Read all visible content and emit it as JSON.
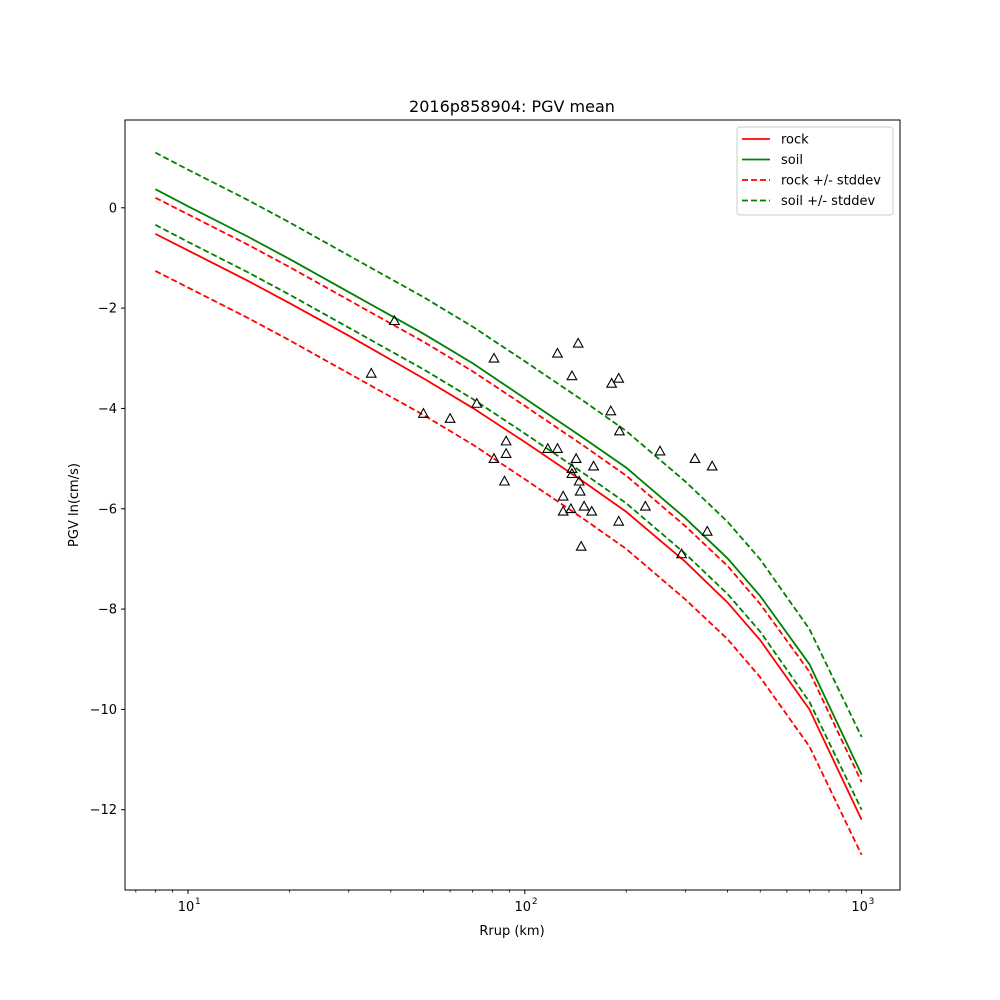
{
  "chart_data": {
    "type": "line",
    "title": "2016p858904: PGV mean",
    "xlabel": "Rrup (km)",
    "ylabel": "PGV ln(cm/s)",
    "xscale": "log",
    "xlim": [
      6.5,
      1300
    ],
    "ylim": [
      -13.6,
      1.75
    ],
    "xticks": [
      {
        "value": 10,
        "label": "10"
      },
      {
        "value": 100,
        "label": "10"
      },
      {
        "value": 1000,
        "label": "10"
      }
    ],
    "xtick_exponents": [
      "1",
      "2",
      "3"
    ],
    "yticks": [
      {
        "value": 0,
        "label": "0"
      },
      {
        "value": -2,
        "label": "−2"
      },
      {
        "value": -4,
        "label": "−4"
      },
      {
        "value": -6,
        "label": "−6"
      },
      {
        "value": -8,
        "label": "−8"
      },
      {
        "value": -10,
        "label": "−10"
      },
      {
        "value": -12,
        "label": "−12"
      }
    ],
    "grid": false,
    "legend_position": "top-right",
    "x": [
      8,
      10,
      15,
      20,
      30,
      50,
      70,
      100,
      150,
      200,
      300,
      400,
      500,
      700,
      1000
    ],
    "series": [
      {
        "name": "rock",
        "color": "#ff0000",
        "dash": "solid",
        "values": [
          -0.52,
          -0.85,
          -1.45,
          -1.9,
          -2.55,
          -3.4,
          -3.99,
          -4.67,
          -5.47,
          -6.06,
          -7.06,
          -7.87,
          -8.62,
          -10.0,
          -12.2
        ]
      },
      {
        "name": "soil",
        "color": "#008000",
        "dash": "solid",
        "values": [
          0.37,
          0.03,
          -0.57,
          -1.02,
          -1.68,
          -2.51,
          -3.1,
          -3.8,
          -4.6,
          -5.18,
          -6.19,
          -6.99,
          -7.74,
          -9.1,
          -11.3
        ]
      },
      {
        "name": "rock +/- stddev",
        "color": "#ff0000",
        "dash": "dashed",
        "values": [
          0.2,
          -0.13,
          -0.73,
          -1.18,
          -1.84,
          -2.67,
          -3.26,
          -3.95,
          -4.75,
          -5.34,
          -6.35,
          -7.14,
          -7.9,
          -9.25,
          -11.45
        ]
      },
      {
        "name": "",
        "color": "#ff0000",
        "dash": "dashed",
        "values": [
          -1.26,
          -1.59,
          -2.19,
          -2.64,
          -3.3,
          -4.13,
          -4.72,
          -5.41,
          -6.21,
          -6.8,
          -7.81,
          -8.6,
          -9.36,
          -10.74,
          -12.9
        ]
      },
      {
        "name": "soil +/- stddev",
        "color": "#008000",
        "dash": "dashed",
        "values": [
          1.1,
          0.76,
          0.16,
          -0.29,
          -0.95,
          -1.78,
          -2.37,
          -3.06,
          -3.86,
          -4.45,
          -5.46,
          -6.26,
          -7.01,
          -8.4,
          -10.55
        ]
      },
      {
        "name": "",
        "color": "#008000",
        "dash": "dashed",
        "values": [
          -0.34,
          -0.68,
          -1.28,
          -1.73,
          -2.39,
          -3.22,
          -3.81,
          -4.5,
          -5.3,
          -5.89,
          -6.9,
          -7.7,
          -8.45,
          -9.85,
          -12.0
        ]
      }
    ],
    "observations": {
      "marker": "triangle",
      "color": "#000000",
      "points": [
        [
          41,
          -2.25
        ],
        [
          35,
          -3.3
        ],
        [
          50,
          -4.1
        ],
        [
          60,
          -4.2
        ],
        [
          72,
          -3.9
        ],
        [
          81,
          -3.0
        ],
        [
          81,
          -5.0
        ],
        [
          87,
          -5.45
        ],
        [
          88,
          -4.65
        ],
        [
          88,
          -4.9
        ],
        [
          117,
          -4.8
        ],
        [
          125,
          -4.8
        ],
        [
          125,
          -2.9
        ],
        [
          130,
          -5.75
        ],
        [
          130,
          -6.05
        ],
        [
          137,
          -6.0
        ],
        [
          138,
          -5.2
        ],
        [
          138,
          -5.3
        ],
        [
          138,
          -3.35
        ],
        [
          142,
          -5.0
        ],
        [
          144,
          -2.7
        ],
        [
          145,
          -5.45
        ],
        [
          146,
          -5.65
        ],
        [
          147,
          -6.75
        ],
        [
          150,
          -5.95
        ],
        [
          158,
          -6.05
        ],
        [
          160,
          -5.15
        ],
        [
          180,
          -4.05
        ],
        [
          181,
          -3.5
        ],
        [
          190,
          -3.4
        ],
        [
          190,
          -6.25
        ],
        [
          191,
          -4.45
        ],
        [
          228,
          -5.95
        ],
        [
          252,
          -4.85
        ],
        [
          292,
          -6.9
        ],
        [
          320,
          -5.0
        ],
        [
          348,
          -6.45
        ],
        [
          360,
          -5.15
        ]
      ]
    }
  }
}
